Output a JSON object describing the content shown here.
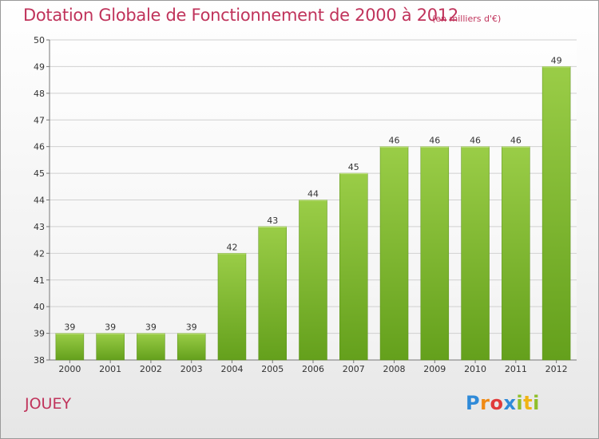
{
  "header": {
    "title": "Dotation Globale de Fonctionnement de 2000 à 2012",
    "unit": "(en milliers d'€)"
  },
  "footer": {
    "commune": "JOUEY",
    "logo": [
      "P",
      "r",
      "o",
      "x",
      "i",
      "t",
      "i"
    ]
  },
  "colors": {
    "title": "#c0335b",
    "bar_top": "#9acd47",
    "bar_bottom": "#6aa320",
    "grid": "#d0d0d0"
  },
  "chart_data": {
    "type": "bar",
    "categories": [
      "2000",
      "2001",
      "2002",
      "2003",
      "2004",
      "2005",
      "2006",
      "2007",
      "2008",
      "2009",
      "2010",
      "2011",
      "2012"
    ],
    "values": [
      39,
      39,
      39,
      39,
      42,
      43,
      44,
      45,
      46,
      46,
      46,
      46,
      49
    ],
    "ylim": [
      38,
      50
    ],
    "yticks": [
      38,
      39,
      40,
      41,
      42,
      43,
      44,
      45,
      46,
      47,
      48,
      49,
      50
    ],
    "grid": true
  }
}
